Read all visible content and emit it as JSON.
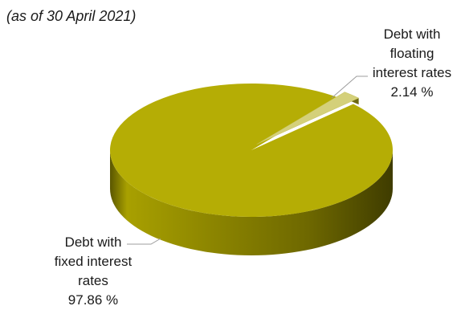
{
  "subtitle": "(as of 30 April 2021)",
  "chart_data": {
    "type": "pie",
    "subtitle": "(as of 30 April 2021)",
    "slices": [
      {
        "label_lines": [
          "Debt with",
          "floating",
          "interest rates"
        ],
        "value_text": "2.14 %",
        "value": 2.14,
        "color": "#d4d07a"
      },
      {
        "label_lines": [
          "Debt with",
          "fixed interest",
          "rates"
        ],
        "value_text": "97.86 %",
        "value": 97.86,
        "color": "#b5ad05"
      }
    ]
  }
}
